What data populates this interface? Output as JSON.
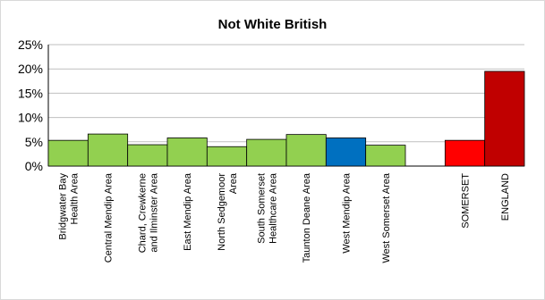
{
  "chart_data": {
    "type": "bar",
    "title": "Not White British",
    "xlabel": "",
    "ylabel": "",
    "ylim": [
      0,
      25
    ],
    "y_ticks": [
      "0%",
      "5%",
      "10%",
      "15%",
      "20%",
      "25%"
    ],
    "y_tick_values": [
      0,
      5,
      10,
      15,
      20,
      25
    ],
    "categories": [
      "Bridgwater Bay Health Area",
      "Central Mendip Area",
      "Chard, Crewkerne and Ilminster Area",
      "East Mendip Area",
      "North Sedgemoor Area",
      "South Somerset Healthcare Area",
      "Taunton Deane Area",
      "West Mendip Area",
      "West Somerset Area",
      "",
      "SOMERSET",
      "ENGLAND"
    ],
    "category_lines": [
      [
        "Bridgwater Bay",
        "Health Area"
      ],
      [
        "Central Mendip Area"
      ],
      [
        "Chard, Crewkerne",
        "and Ilminster Area"
      ],
      [
        "East Mendip Area"
      ],
      [
        "North Sedgemoor",
        "Area"
      ],
      [
        "South Somerset",
        "Healthcare Area"
      ],
      [
        "Taunton Deane Area"
      ],
      [
        "West Mendip Area"
      ],
      [
        "West Somerset Area"
      ],
      [],
      [
        "SOMERSET"
      ],
      [
        "ENGLAND"
      ]
    ],
    "values": [
      5.3,
      6.6,
      4.4,
      5.8,
      4.0,
      5.5,
      6.5,
      5.8,
      4.3,
      null,
      5.3,
      19.5
    ],
    "bar_colors": [
      "#92d050",
      "#92d050",
      "#92d050",
      "#92d050",
      "#92d050",
      "#92d050",
      "#92d050",
      "#0070c0",
      "#92d050",
      null,
      "#ff0000",
      "#c00000"
    ],
    "grid": true,
    "legend": "none"
  }
}
